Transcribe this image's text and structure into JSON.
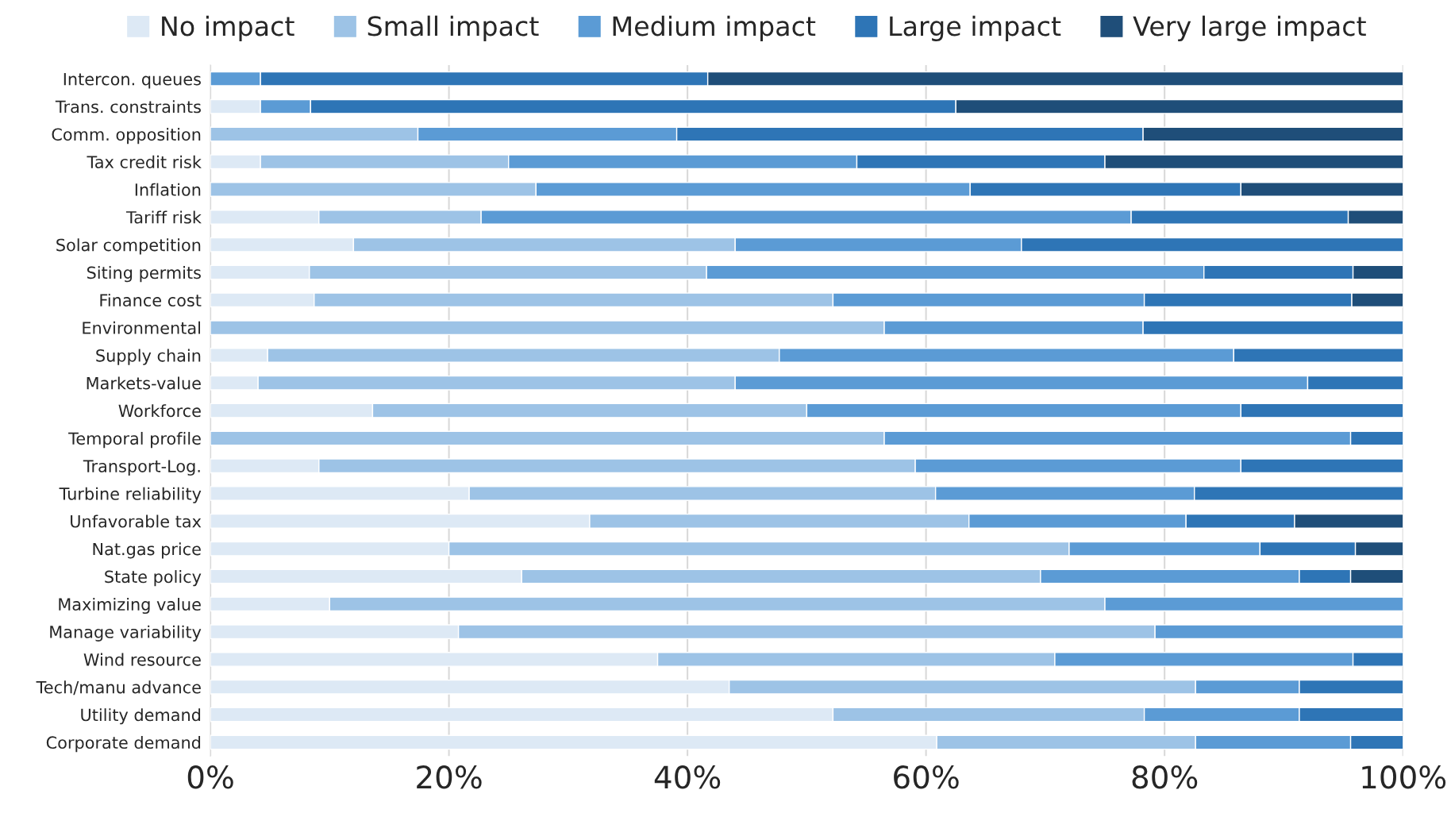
{
  "chart_data": {
    "type": "bar",
    "orientation": "horizontal",
    "stacked": true,
    "legend": "top",
    "grid": "x",
    "categories": [
      "Intercon. queues",
      "Trans. constraints",
      "Comm. opposition",
      "Tax credit risk",
      "Inflation",
      "Tariff risk",
      "Solar competition",
      "Siting permits",
      "Finance cost",
      "Environmental",
      "Supply chain",
      "Markets-value",
      "Workforce",
      "Temporal profile",
      "Transport-Log.",
      "Turbine reliability",
      "Unfavorable tax",
      "Nat.gas price",
      "State policy",
      "Maximizing value",
      "Manage variability",
      "Wind resource",
      "Tech/manu advance",
      "Utility demand",
      "Corporate demand"
    ],
    "xlim": [
      0,
      100
    ],
    "xticks": [
      {
        "value": 0,
        "label": "0%"
      },
      {
        "value": 20,
        "label": "20%"
      },
      {
        "value": 40,
        "label": "40%"
      },
      {
        "value": 60,
        "label": "60%"
      },
      {
        "value": 80,
        "label": "80%"
      },
      {
        "value": 100,
        "label": "100%"
      }
    ],
    "series": [
      {
        "name": "No impact",
        "color": "#dde9f5",
        "values": [
          0,
          4.2,
          0,
          4.2,
          0,
          9.1,
          12,
          8.3,
          8.7,
          0,
          4.8,
          4,
          13.6,
          0,
          9.1,
          21.7,
          31.8,
          20,
          26.1,
          10,
          20.8,
          37.5,
          43.5,
          52.2,
          60.9
        ]
      },
      {
        "name": "Small impact",
        "color": "#9dc3e6",
        "values": [
          0,
          0,
          17.4,
          20.8,
          27.3,
          13.6,
          32,
          33.3,
          43.5,
          56.5,
          42.9,
          40,
          36.4,
          56.5,
          50,
          39.1,
          31.8,
          52,
          43.5,
          65,
          58.4,
          33.3,
          39.1,
          26.1,
          21.7
        ]
      },
      {
        "name": "Medium impact",
        "color": "#5b9bd5",
        "values": [
          4.2,
          4.2,
          21.7,
          29.2,
          36.4,
          54.5,
          24,
          41.7,
          26.1,
          21.7,
          38.1,
          48,
          36.4,
          39.1,
          27.3,
          21.7,
          18.2,
          16,
          21.7,
          25,
          20.8,
          25,
          8.7,
          13,
          13
        ]
      },
      {
        "name": "Large impact",
        "color": "#2e75b6",
        "values": [
          37.5,
          54.1,
          39.1,
          20.8,
          22.7,
          18.2,
          32,
          12.5,
          17.4,
          21.8,
          14.2,
          8,
          13.6,
          4.4,
          13.6,
          17.5,
          9.1,
          8,
          4.3,
          0,
          0,
          4.2,
          8.7,
          8.7,
          4.4
        ]
      },
      {
        "name": "Very large impact",
        "color": "#1f4e79",
        "values": [
          58.3,
          37.5,
          21.8,
          25,
          13.6,
          4.6,
          0,
          4.2,
          4.3,
          0,
          0,
          0,
          0,
          0,
          0,
          0,
          9.1,
          4,
          4.4,
          0,
          0,
          0,
          0,
          0,
          0
        ]
      }
    ]
  }
}
